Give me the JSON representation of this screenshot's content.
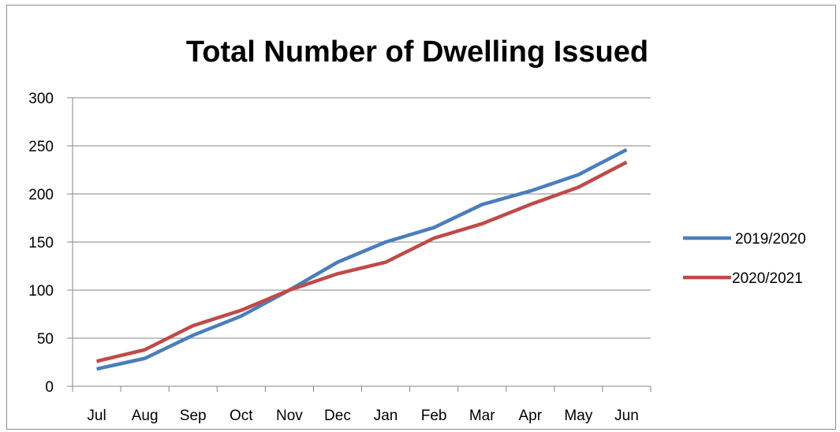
{
  "chart_data": {
    "type": "line",
    "title": "Total Number of Dwelling Issued",
    "xlabel": "",
    "ylabel": "",
    "categories": [
      "Jul",
      "Aug",
      "Sep",
      "Oct",
      "Nov",
      "Dec",
      "Jan",
      "Feb",
      "Mar",
      "Apr",
      "May",
      "Jun"
    ],
    "ylim": [
      0,
      300
    ],
    "yticks": [
      0,
      50,
      100,
      150,
      200,
      250,
      300
    ],
    "grid": true,
    "legend_position": "right",
    "series": [
      {
        "name": "2019/2020",
        "color": "#4a7ebb",
        "values": [
          18,
          29,
          53,
          73,
          100,
          129,
          150,
          165,
          189,
          203,
          220,
          246
        ]
      },
      {
        "name": "2020/2021",
        "color": "#be4b48",
        "values": [
          26,
          38,
          63,
          79,
          100,
          117,
          129,
          154,
          169,
          189,
          207,
          233
        ]
      }
    ]
  }
}
